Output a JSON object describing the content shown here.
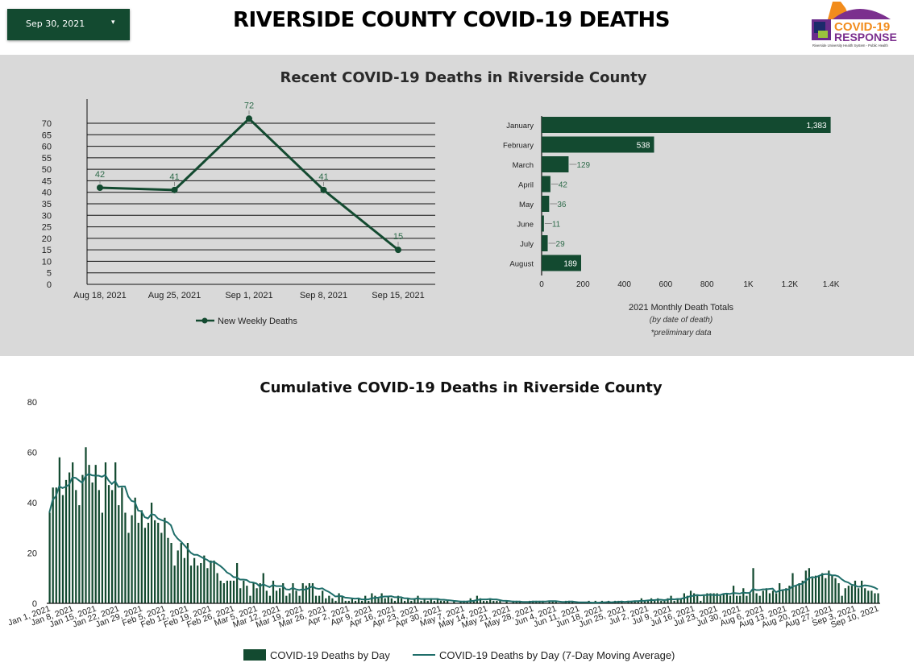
{
  "header": {
    "date_selector": "Sep 30, 2021",
    "date_caret": "▾",
    "title": "RIVERSIDE COUNTY COVID-19 DEATHS",
    "logo": {
      "line1": "COVID-19",
      "line2": "RESPONSE",
      "subtitle": "Riverside University Health System - Public Health"
    }
  },
  "colors": {
    "dark_green": "#134a30",
    "teal": "#1f6e6a",
    "panel_bg": "#d9d9d9",
    "label_green": "#2e6b4a"
  },
  "recent_section": {
    "title": "Recent COVID-19 Deaths in Riverside County"
  },
  "cumulative_section": {
    "title": "Cumulative COVID-19 Deaths in Riverside County"
  },
  "chart_data": [
    {
      "type": "line",
      "title": "",
      "categories": [
        "Aug 18, 2021",
        "Aug 25, 2021",
        "Sep 1, 2021",
        "Sep 8, 2021",
        "Sep 15, 2021"
      ],
      "series": [
        {
          "name": "New Weekly Deaths",
          "values": [
            42,
            41,
            72,
            41,
            15
          ]
        }
      ],
      "data_labels": [
        "42",
        "41",
        "72",
        "41",
        "15"
      ],
      "yticks": [
        "0",
        "5",
        "10",
        "15",
        "20",
        "25",
        "30",
        "35",
        "40",
        "45",
        "50",
        "55",
        "60",
        "65",
        "70"
      ],
      "ylim": [
        0,
        80
      ],
      "grid": true,
      "legend": "bottom"
    },
    {
      "type": "bar",
      "orientation": "horizontal",
      "categories": [
        "January",
        "February",
        "March",
        "April",
        "May",
        "June",
        "July",
        "August"
      ],
      "values": [
        1383,
        538,
        129,
        42,
        36,
        11,
        29,
        189
      ],
      "data_labels": [
        "1,383",
        "538",
        "129",
        "42",
        "36",
        "11",
        "29",
        "189"
      ],
      "xticks": [
        "0",
        "200",
        "400",
        "600",
        "800",
        "1K",
        "1.2K",
        "1.4K"
      ],
      "xlim": [
        0,
        1400
      ],
      "xlabel": "2021 Monthly Death Totals",
      "note1": "(by date of death)",
      "note2": "*preliminary data"
    },
    {
      "type": "bar",
      "title": "Cumulative COVID-19 Deaths in Riverside County",
      "x_start": "Jan 1, 2021",
      "xticks": [
        "Jan 1, 2021",
        "Jan 8, 2021",
        "Jan 15, 2021",
        "Jan 22, 2021",
        "Jan 29, 2021",
        "Feb 5, 2021",
        "Feb 12, 2021",
        "Feb 19, 2021",
        "Feb 26, 2021",
        "Mar 5, 2021",
        "Mar 12, 2021",
        "Mar 19, 2021",
        "Mar 26, 2021",
        "Apr 2, 2021",
        "Apr 9, 2021",
        "Apr 16, 2021",
        "Apr 23, 2021",
        "Apr 30, 2021",
        "May 7, 2021",
        "May 14, 2021",
        "May 21, 2021",
        "May 28, 2021",
        "Jun 4, 2021",
        "Jun 11, 2021",
        "Jun 18, 2021",
        "Jun 25, 2021",
        "Jul 2, 2021",
        "Jul 9, 2021",
        "Jul 16, 2021",
        "Jul 23, 2021",
        "Jul 30, 2021",
        "Aug 6, 2021",
        "Aug 13, 2021",
        "Aug 20, 2021",
        "Aug 27, 2021",
        "Sep 3, 2021",
        "Sep 10, 2021"
      ],
      "yticks": [
        "0",
        "20",
        "40",
        "60",
        "80"
      ],
      "ylim": [
        0,
        80
      ],
      "series": [
        {
          "name": "COVID-19 Deaths by Day",
          "kind": "bar",
          "values": [
            36,
            46,
            46,
            58,
            43,
            49,
            52,
            56,
            45,
            39,
            51,
            62,
            55,
            48,
            55,
            45,
            36,
            56,
            47,
            45,
            56,
            39,
            46,
            36,
            28,
            35,
            42,
            32,
            37,
            30,
            32,
            40,
            33,
            32,
            28,
            34,
            26,
            24,
            15,
            21,
            24,
            18,
            24,
            15,
            18,
            15,
            16,
            19,
            14,
            17,
            17,
            12,
            9,
            8,
            9,
            9,
            9,
            16,
            6,
            9,
            7,
            3,
            8,
            6,
            8,
            12,
            5,
            3,
            9,
            5,
            6,
            8,
            3,
            4,
            8,
            5,
            3,
            8,
            7,
            8,
            8,
            3,
            3,
            5,
            2,
            3,
            2,
            1,
            4,
            3,
            1,
            1,
            2,
            1,
            2,
            1,
            3,
            1,
            4,
            3,
            2,
            4,
            2,
            3,
            2,
            1,
            3,
            2,
            1,
            2,
            1,
            2,
            3,
            1,
            2,
            1,
            2,
            1,
            2,
            1,
            1,
            1,
            0,
            1,
            0,
            1,
            1,
            1,
            2,
            1,
            3,
            2,
            1,
            1,
            2,
            1,
            1,
            1,
            0,
            1,
            0,
            1,
            1,
            1,
            0,
            0,
            1,
            1,
            1,
            1,
            1,
            0,
            1,
            1,
            1,
            0,
            0,
            1,
            1,
            1,
            0,
            0,
            0,
            0,
            1,
            0,
            1,
            0,
            1,
            0,
            1,
            0,
            1,
            1,
            1,
            0,
            1,
            1,
            1,
            1,
            2,
            1,
            1,
            2,
            1,
            2,
            1,
            1,
            2,
            3,
            1,
            2,
            2,
            4,
            3,
            5,
            4,
            3,
            1,
            3,
            4,
            4,
            4,
            4,
            3,
            4,
            4,
            3,
            7,
            3,
            3,
            6,
            3,
            4,
            14,
            4,
            3,
            5,
            6,
            4,
            5,
            4,
            8,
            5,
            6,
            7,
            12,
            7,
            8,
            9,
            13,
            14,
            10,
            11,
            11,
            12,
            10,
            13,
            11,
            10,
            8,
            3,
            6,
            7,
            7,
            9,
            6,
            9,
            6,
            5,
            5,
            4,
            4
          ]
        },
        {
          "name": "COVID-19 Deaths by Day (7-Day Moving Average)",
          "kind": "line"
        }
      ],
      "legend": "bottom"
    }
  ]
}
